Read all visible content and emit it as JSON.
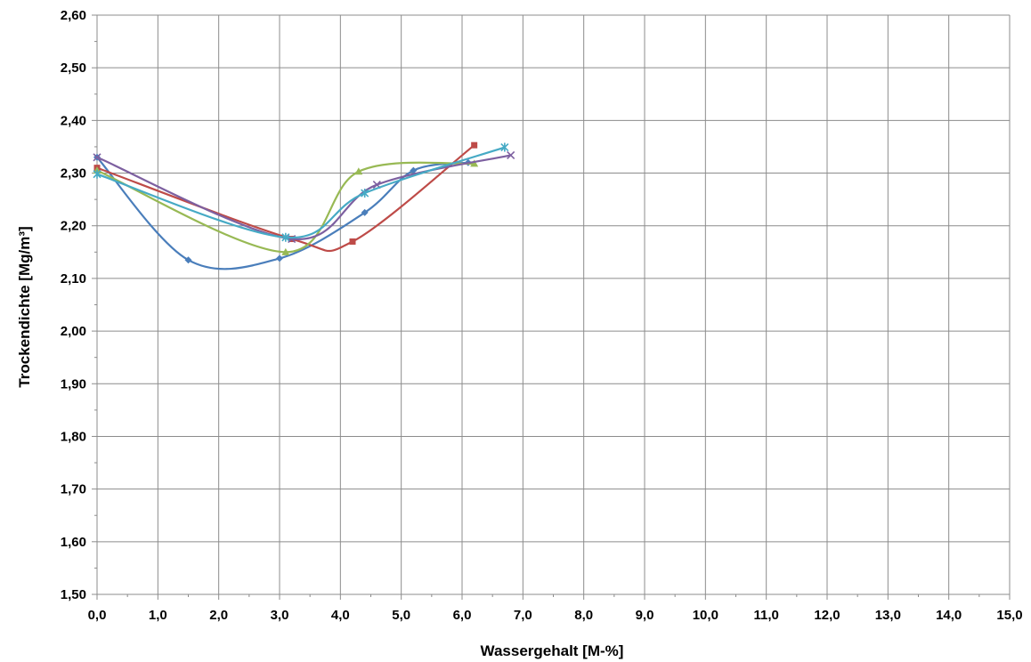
{
  "chart_data": {
    "type": "line",
    "xlabel": "Wassergehalt [M-%]",
    "ylabel": "Trockendichte [Mg/m³]",
    "xlim": [
      0,
      15
    ],
    "ylim": [
      1.5,
      2.6
    ],
    "x_ticks": [
      "0,0",
      "1,0",
      "2,0",
      "3,0",
      "4,0",
      "5,0",
      "6,0",
      "7,0",
      "8,0",
      "9,0",
      "10,0",
      "11,0",
      "12,0",
      "13,0",
      "14,0",
      "15,0"
    ],
    "y_ticks": [
      "1,50",
      "1,60",
      "1,70",
      "1,80",
      "1,90",
      "2,00",
      "2,10",
      "2,20",
      "2,30",
      "2,40",
      "2,50",
      "2,60"
    ],
    "grid": true,
    "series": [
      {
        "color": "#4a7ebb",
        "marker": "diamond",
        "points": [
          [
            0.0,
            2.33
          ],
          [
            1.5,
            2.135
          ],
          [
            3.0,
            2.138
          ],
          [
            4.4,
            2.225
          ],
          [
            5.2,
            2.305
          ],
          [
            6.1,
            2.32
          ]
        ]
      },
      {
        "color": "#be4b48",
        "marker": "square",
        "points": [
          [
            0.0,
            2.31
          ],
          [
            3.2,
            2.175
          ],
          [
            4.2,
            2.17
          ],
          [
            6.2,
            2.353
          ]
        ]
      },
      {
        "color": "#98b954",
        "marker": "triangle",
        "points": [
          [
            0.0,
            2.305
          ],
          [
            3.1,
            2.15
          ],
          [
            4.3,
            2.303
          ],
          [
            6.2,
            2.318
          ]
        ]
      },
      {
        "color": "#7d60a0",
        "marker": "x",
        "points": [
          [
            0.0,
            2.33
          ],
          [
            3.2,
            2.175
          ],
          [
            4.6,
            2.278
          ],
          [
            6.8,
            2.334
          ]
        ]
      },
      {
        "color": "#46aac5",
        "marker": "star",
        "points": [
          [
            0.0,
            2.298
          ],
          [
            3.1,
            2.178
          ],
          [
            4.4,
            2.262
          ],
          [
            6.7,
            2.349
          ]
        ]
      }
    ]
  }
}
